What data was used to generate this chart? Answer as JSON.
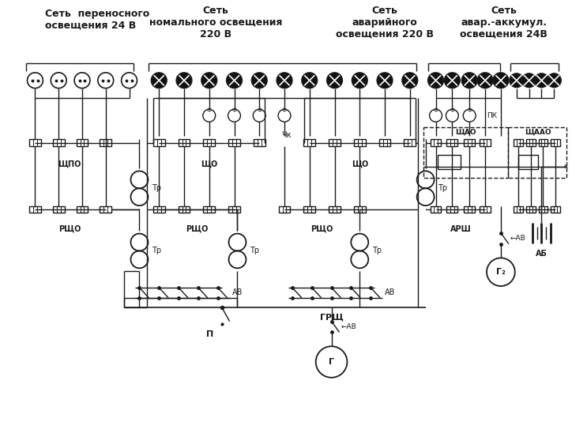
{
  "bg_color": "#ffffff",
  "line_color": "#1a1a1a",
  "fig_width": 7.24,
  "fig_height": 5.34,
  "title1": "Сеть  переносного\nосвещения 24 В",
  "title2": "Сеть\nномального освещения\n220 В",
  "title3": "Сеть\nаварийного\nосвещения 220 В",
  "title4": "Сеть\nавар.-аккумул.\nосвещения 24В"
}
